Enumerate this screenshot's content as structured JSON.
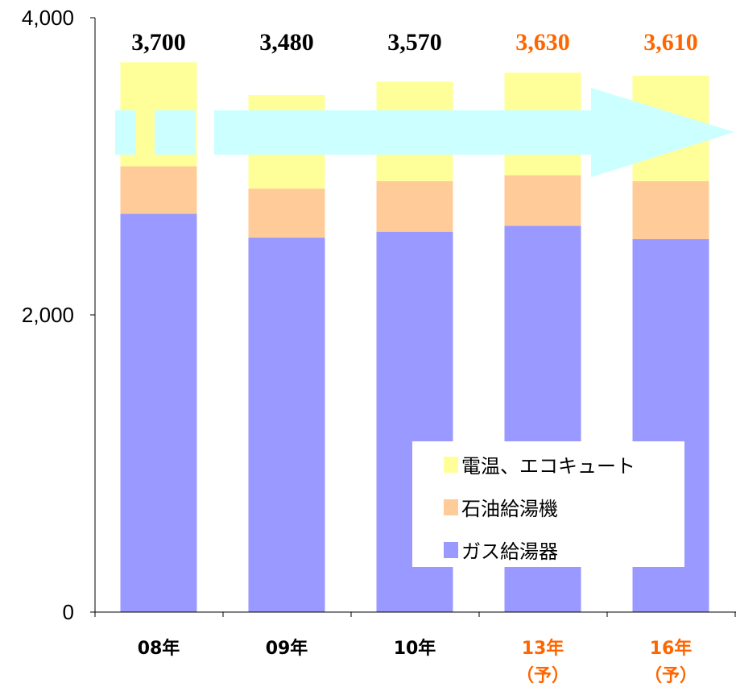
{
  "chart_data": {
    "type": "bar",
    "stacked": true,
    "title": "",
    "xlabel": "",
    "ylabel": "",
    "ylim": [
      0,
      4000
    ],
    "yticks": [
      "0",
      "2,000",
      "4,000"
    ],
    "grid": false,
    "legend_position": "bottom-right",
    "categories": [
      {
        "line1": "08年",
        "line2": "",
        "forecast": false
      },
      {
        "line1": "09年",
        "line2": "",
        "forecast": false
      },
      {
        "line1": "10年",
        "line2": "",
        "forecast": false
      },
      {
        "line1": "13年",
        "line2": "（予）",
        "forecast": true
      },
      {
        "line1": "16年",
        "line2": "（予）",
        "forecast": true
      }
    ],
    "series": [
      {
        "name": "ガス給湯器",
        "color": "#9999ff",
        "values": [
          2680,
          2520,
          2560,
          2600,
          2510
        ]
      },
      {
        "name": "石油給湯機",
        "color": "#ffcc99",
        "values": [
          320,
          330,
          340,
          340,
          390
        ]
      },
      {
        "name": "電温、エコキュート",
        "color": "#ffff99",
        "values": [
          700,
          630,
          670,
          690,
          710
        ]
      }
    ],
    "totals": [
      "3,700",
      "3,480",
      "3,570",
      "3,630",
      "3,610"
    ],
    "annotation": {
      "type": "trend-arrow",
      "color": "#ccffff"
    },
    "colors": {
      "actual_label": "#000000",
      "forecast_label": "#ff6600"
    }
  }
}
